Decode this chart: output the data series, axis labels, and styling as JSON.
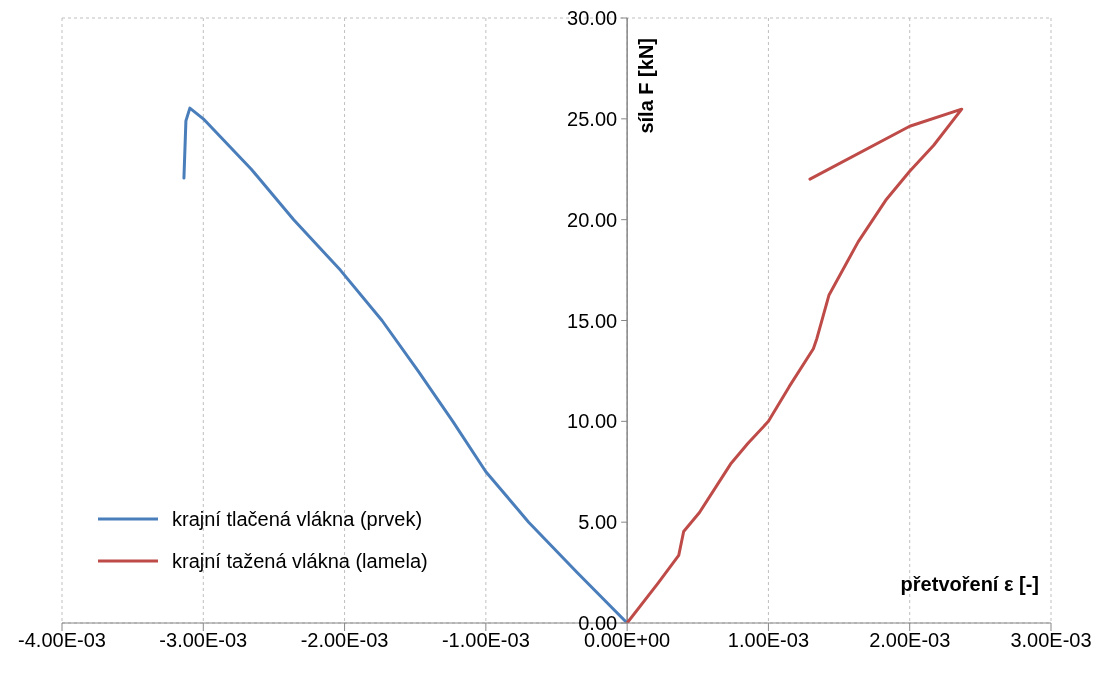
{
  "chart_data": {
    "type": "line",
    "xlabel": "přetvoření ε [-]",
    "ylabel": "síla F [kN]",
    "xlim": [
      -0.004,
      0.003
    ],
    "xticks": [
      {
        "value": -0.004,
        "label": "-4.00E-03"
      },
      {
        "value": -0.003,
        "label": "-3.00E-03"
      },
      {
        "value": -0.002,
        "label": "-2.00E-03"
      },
      {
        "value": -0.001,
        "label": "-1.00E-03"
      },
      {
        "value": 0,
        "label": "0.00E+00"
      },
      {
        "value": 0.001,
        "label": "1.00E-03"
      },
      {
        "value": 0.002,
        "label": "2.00E-03"
      },
      {
        "value": 0.003,
        "label": "3.00E-03"
      }
    ],
    "ylim": [
      0,
      30
    ],
    "yticks": [
      {
        "value": 0,
        "label": "0.00"
      },
      {
        "value": 5,
        "label": "5.00"
      },
      {
        "value": 10,
        "label": "10.00"
      },
      {
        "value": 15,
        "label": "15.00"
      },
      {
        "value": 20,
        "label": "20.00"
      },
      {
        "value": 25,
        "label": "25.00"
      },
      {
        "value": 30,
        "label": "30.00"
      }
    ],
    "grid": true,
    "legend": "bottom left",
    "marker": "none",
    "line_style": "solid",
    "series": [
      {
        "name": "krajní tlačená vlákna (prvek)",
        "color": "#4a7ebb",
        "x": [
          -0.003137,
          -0.003123,
          -0.003095,
          -0.003,
          -0.00266,
          -0.00236,
          -0.00203,
          -0.001735,
          -0.00148,
          -0.001234,
          -0.001,
          -0.000697,
          -0.000354,
          0
        ],
        "values": [
          22.06,
          24.9,
          25.53,
          25,
          22.5,
          20,
          17.5,
          15,
          12.5,
          10,
          7.5,
          5,
          2.5,
          0
        ]
      },
      {
        "name": "krajní tažená vlákna (lamela)",
        "color": "#be4b48",
        "x": [
          0,
          0.000219,
          0.000365,
          0.0004,
          0.000512,
          0.000732,
          0.000854,
          0.001,
          0.001147,
          0.001318,
          0.001343,
          0.001428,
          0.001635,
          0.00183,
          0.002,
          0.00217,
          0.002368,
          0.002,
          0.001294
        ],
        "values": [
          0,
          1.98,
          3.35,
          4.54,
          5.48,
          7.88,
          8.9,
          10,
          11.72,
          13.6,
          14.11,
          16.25,
          18.9,
          20.96,
          22.4,
          23.69,
          25.48,
          24.63,
          22.01
        ]
      }
    ]
  }
}
